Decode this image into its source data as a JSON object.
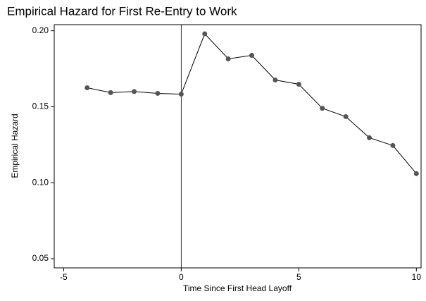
{
  "chart_data": {
    "type": "line",
    "title": "Empirical Hazard for First Re-Entry to Work",
    "xlabel": "Time Since First Head Layoff",
    "ylabel": "Empirical Hazard",
    "x": [
      -4,
      -3,
      -2,
      -1,
      0,
      1,
      2,
      3,
      4,
      5,
      6,
      7,
      8,
      9,
      10
    ],
    "series": [
      {
        "name": "Empirical Hazard",
        "color": "#555555",
        "values": [
          0.1625,
          0.1593,
          0.16,
          0.1588,
          0.1583,
          0.198,
          0.1815,
          0.1838,
          0.1676,
          0.1648,
          0.149,
          0.1435,
          0.1296,
          0.1245,
          0.106
        ]
      }
    ],
    "xlim": [
      -5.4,
      10.2
    ],
    "ylim": [
      0.044,
      0.204
    ],
    "xticks": [
      -5,
      0,
      5,
      10
    ],
    "yticks": [
      {
        "value": 0.05,
        "label": "0.05"
      },
      {
        "value": 0.1,
        "label": "0.10"
      },
      {
        "value": 0.15,
        "label": "0.15"
      },
      {
        "value": 0.2,
        "label": "0.20"
      }
    ],
    "vline": 0,
    "grid": false
  }
}
